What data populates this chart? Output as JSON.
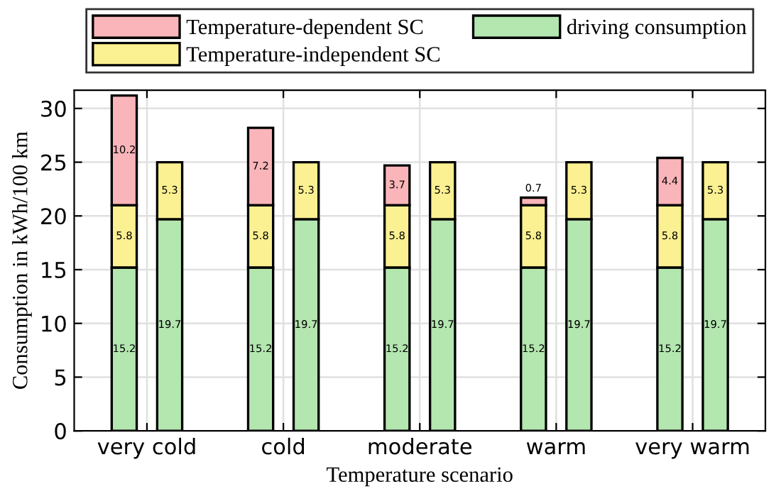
{
  "chart_data": {
    "type": "bar",
    "stacked": true,
    "xlabel": "Temperature scenario",
    "ylabel": "Consumption in kWh/100 km",
    "categories": [
      null,
      "very cold",
      null,
      null,
      null,
      null,
      null,
      "cold",
      null,
      null,
      null,
      null,
      null,
      "moderate",
      null,
      null,
      null,
      null,
      null,
      "warm",
      null,
      null,
      null,
      null,
      null,
      "very warm",
      null
    ],
    "series": [
      {
        "name": "driving consumption",
        "color": "#b4e6b0",
        "values": [
          15.2,
          null,
          19.7,
          null,
          null,
          null,
          15.2,
          null,
          19.7,
          null,
          null,
          null,
          15.2,
          null,
          19.7,
          null,
          null,
          null,
          15.2,
          null,
          19.7,
          null,
          null,
          null,
          15.2,
          null,
          19.7
        ]
      },
      {
        "name": "Temperature-independent SC",
        "color": "#fbf092",
        "values": [
          5.8,
          null,
          5.3,
          null,
          null,
          null,
          5.8,
          null,
          5.3,
          null,
          null,
          null,
          5.8,
          null,
          5.3,
          null,
          null,
          null,
          5.8,
          null,
          5.3,
          null,
          null,
          null,
          5.8,
          null,
          5.3
        ]
      },
      {
        "name": "Temperature-dependent SC",
        "color": "#f9b5b9",
        "values": [
          10.2,
          null,
          null,
          null,
          null,
          null,
          7.2,
          null,
          null,
          null,
          null,
          null,
          3.7,
          null,
          null,
          null,
          null,
          null,
          0.7,
          null,
          null,
          null,
          null,
          null,
          4.4,
          null,
          null
        ]
      }
    ],
    "data_labels": true,
    "ylim": [
      0,
      31.7
    ],
    "yticks": [
      0,
      5,
      10,
      15,
      20,
      25,
      30
    ],
    "grid": true,
    "legend": "top"
  }
}
